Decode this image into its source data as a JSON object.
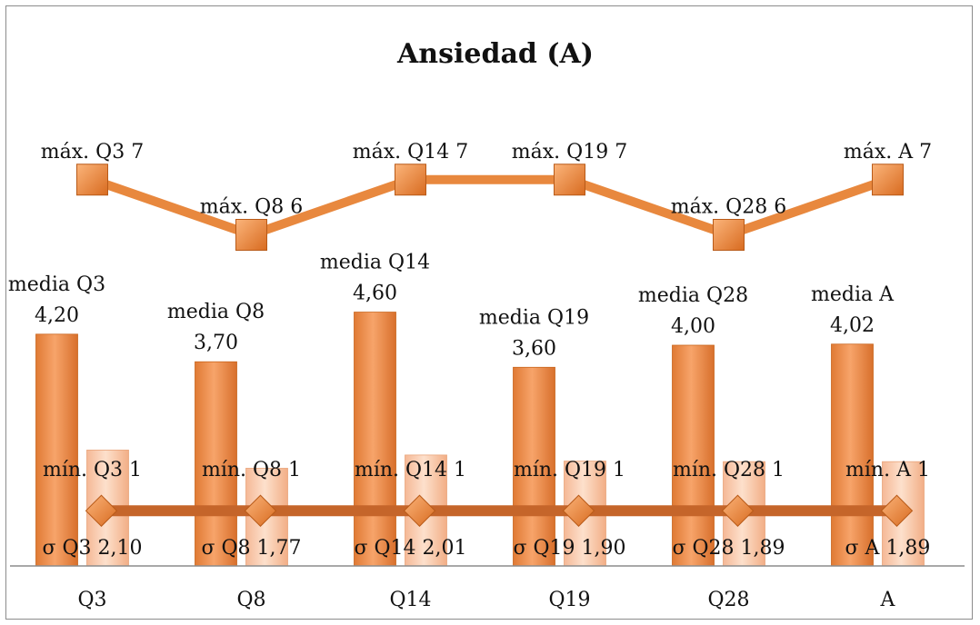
{
  "chart_data": {
    "type": "bar",
    "title": "Ansiedad (A)",
    "categories": [
      "Q3",
      "Q8",
      "Q14",
      "Q19",
      "Q28",
      "A"
    ],
    "ylim": [
      0,
      8
    ],
    "series": [
      {
        "kind": "bar",
        "values": [
          4.2,
          3.7,
          4.6,
          3.6,
          4.0,
          4.02
        ],
        "labels": [
          "media Q3|4,20",
          "media Q8|3,70",
          "media Q14|4,60",
          "media Q19|3,60",
          "media Q28|4,00",
          "media A|4,02"
        ],
        "color": "#f0965a"
      },
      {
        "kind": "bar",
        "values": [
          2.1,
          1.77,
          2.01,
          1.9,
          1.89,
          1.89
        ],
        "labels": [
          "σ Q3 2,10",
          "σ Q8 1,77",
          "σ Q14 2,01",
          "σ Q19 1,90",
          "σ Q28 1,89",
          "σ A 1,89"
        ],
        "color": "#f9cbac"
      },
      {
        "kind": "line",
        "values": [
          7,
          6,
          7,
          7,
          6,
          7
        ],
        "labels": [
          "máx. Q3 7",
          "máx. Q8 6",
          "máx. Q14 7",
          "máx. Q19 7",
          "máx. Q28 6",
          "máx. A 7"
        ],
        "color": "#e8883e"
      },
      {
        "kind": "line",
        "values": [
          1,
          1,
          1,
          1,
          1,
          1
        ],
        "labels": [
          "mín. Q3 1",
          "mín. Q8 1",
          "mín. Q14 1",
          "mín. Q19 1",
          "mín. Q28 1",
          "mín. A 1"
        ],
        "color": "#c5652a"
      }
    ],
    "grid": false,
    "legend": "none"
  }
}
